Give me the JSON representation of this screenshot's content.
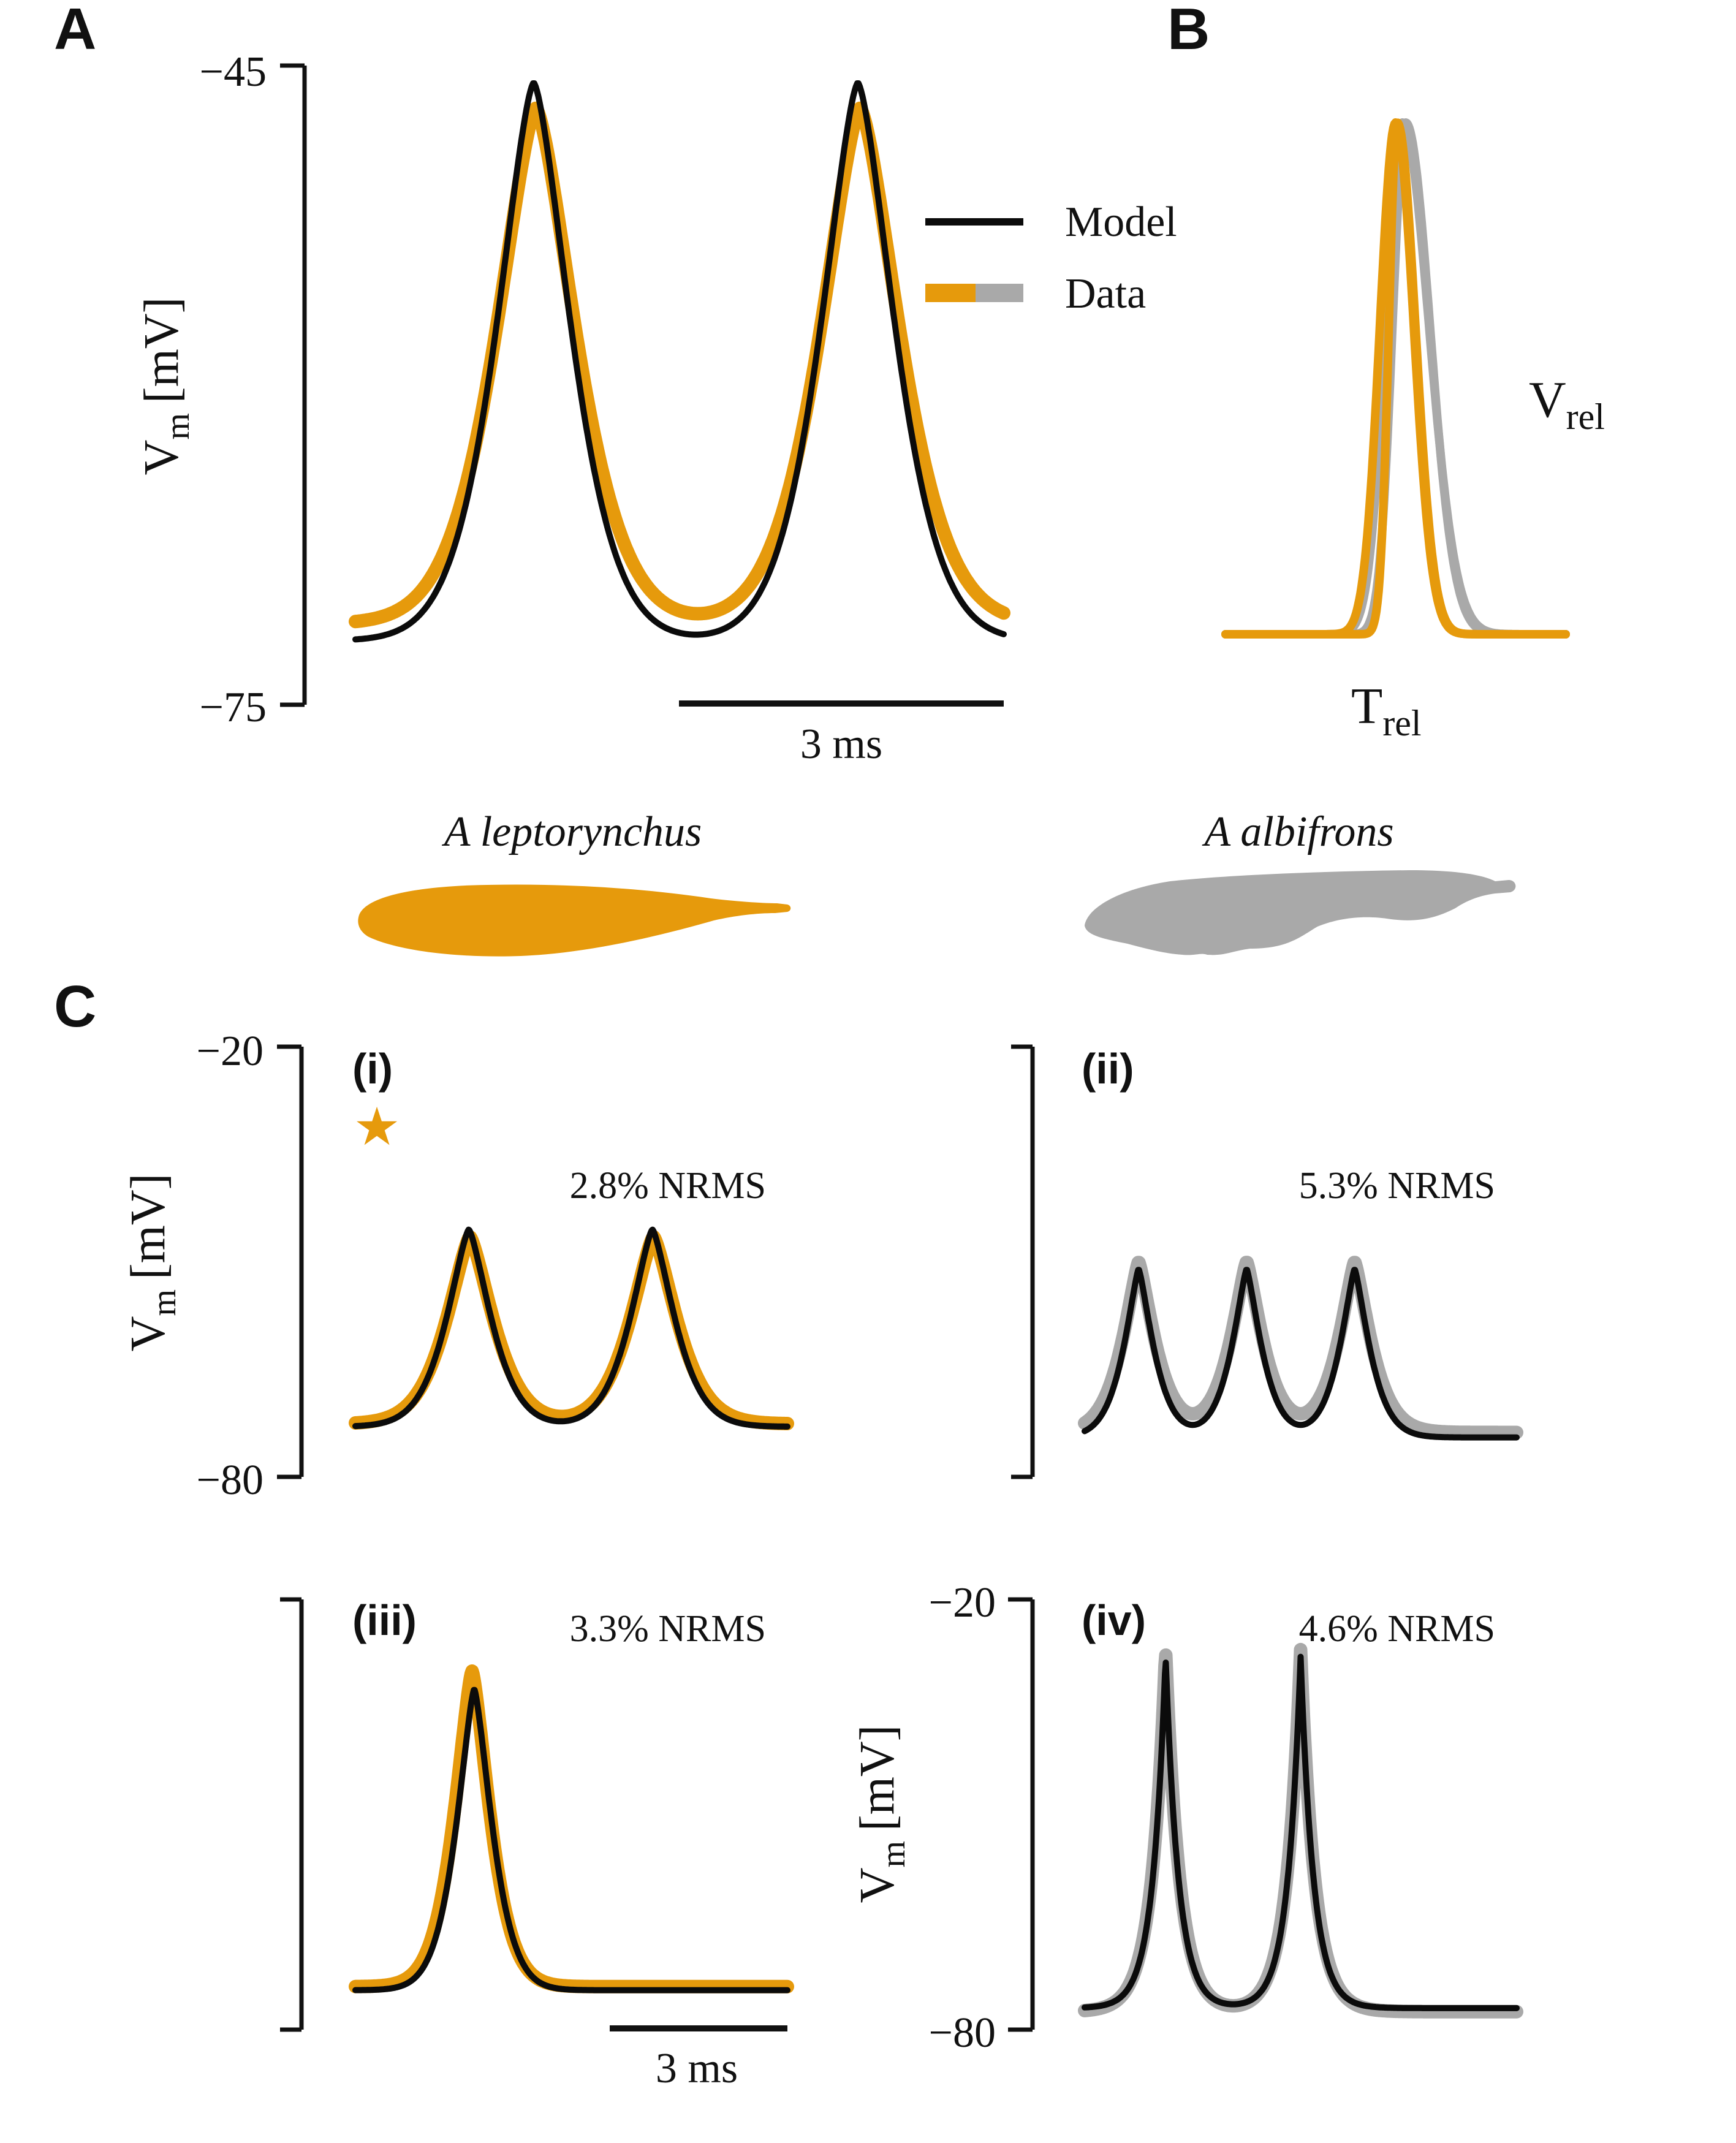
{
  "colors": {
    "model": "#0b0b0b",
    "data_leptorynchus": "#e69a0c",
    "data_albifrons": "#a9a9a9"
  },
  "panels": {
    "A": {
      "letter": "A"
    },
    "B": {
      "letter": "B"
    },
    "C": {
      "letter": "C"
    }
  },
  "legend": {
    "model": "Model",
    "data": "Data"
  },
  "species": {
    "left": "A leptorynchus",
    "right": "A albifrons"
  },
  "axis_label": {
    "base": "V",
    "sub": "m",
    "unit": "[mV]"
  },
  "scalebar": {
    "A": "3 ms",
    "C": "3 ms"
  },
  "panelB_labels": {
    "v_base": "V",
    "v_sub": "rel",
    "t_base": "T",
    "t_sub": "rel"
  },
  "subpanels": [
    {
      "tag": "(i)",
      "nrms": "2.8% NRMS",
      "star": true,
      "star_glyph": "★"
    },
    {
      "tag": "(ii)",
      "nrms": "5.3% NRMS"
    },
    {
      "tag": "(iii)",
      "nrms": "3.3% NRMS"
    },
    {
      "tag": "(iv)",
      "nrms": "4.6% NRMS"
    }
  ],
  "chart_data": [
    {
      "id": "A",
      "type": "line",
      "ylabel": "Vm [mV]",
      "yticks": [
        "−45",
        "−75"
      ],
      "ylim": [
        -75,
        -45
      ],
      "xlim": [
        0,
        6
      ],
      "x_units": "ms",
      "scalebar_ms": 3,
      "legend": "top-right",
      "series": [
        {
          "name": "Model",
          "color": "#0b0b0b",
          "trough": -72.0,
          "peak": -45.8,
          "peaks_ms": [
            1.65,
            4.65
          ],
          "width_ms": 0.5,
          "sharp": 1.5
        },
        {
          "name": "Data",
          "color": "#e69a0c",
          "trough": -71.2,
          "peak": -47.0,
          "peaks_ms": [
            1.67,
            4.67
          ],
          "width_ms": 0.54,
          "sharp": 1.5
        }
      ]
    },
    {
      "id": "B",
      "type": "line",
      "xlabel": "Trel",
      "ylabel": "Vrel",
      "xlim": [
        0,
        1
      ],
      "ylim": [
        0,
        1
      ],
      "series": [
        {
          "color": "#a9a9a9",
          "center": 0.52,
          "rise": 0.07,
          "fall": 0.11
        },
        {
          "color": "#a9a9a9",
          "center": 0.53,
          "rise": 0.055,
          "fall": 0.1
        },
        {
          "color": "#e69a0c",
          "center": 0.5,
          "rise": 0.065,
          "fall": 0.075
        },
        {
          "color": "#e69a0c",
          "center": 0.505,
          "rise": 0.035,
          "fall": 0.075
        }
      ]
    },
    {
      "id": "C(i)",
      "type": "line",
      "yticks": [
        "−20",
        "−80"
      ],
      "ylim": [
        -80,
        -20
      ],
      "xlim": [
        0,
        4
      ],
      "series": [
        {
          "name": "Model",
          "color": "#0b0b0b",
          "trough": -73.0,
          "peak": -45.5,
          "peaks_ms": [
            1.05,
            2.75
          ],
          "width_ms": 0.3,
          "sharp": 1.4
        },
        {
          "name": "Data",
          "color": "#e69a0c",
          "trough": -72.6,
          "peak": -46.5,
          "peaks_ms": [
            1.06,
            2.76
          ],
          "width_ms": 0.32,
          "sharp": 1.4
        }
      ]
    },
    {
      "id": "C(ii)",
      "type": "line",
      "ylim": [
        -80,
        -20
      ],
      "xlim": [
        0,
        4
      ],
      "series": [
        {
          "name": "Model",
          "color": "#0b0b0b",
          "trough": -74.5,
          "peak": -51.0,
          "peaks_ms": [
            0.5,
            1.5,
            2.5
          ],
          "width_ms": 0.2,
          "sharp": 1.3
        },
        {
          "name": "Data",
          "color": "#a9a9a9",
          "trough": -73.8,
          "peak": -50.0,
          "peaks_ms": [
            0.5,
            1.5,
            2.5
          ],
          "width_ms": 0.22,
          "sharp": 1.3
        }
      ]
    },
    {
      "id": "C(iii)",
      "type": "line",
      "ylim": [
        -80,
        -20
      ],
      "xlim": [
        0,
        4
      ],
      "series": [
        {
          "name": "Model",
          "color": "#0b0b0b",
          "trough": -74.5,
          "peak": -32.5,
          "peaks_ms": [
            1.1
          ],
          "width_ms": 0.24,
          "sharp": 1.4
        },
        {
          "name": "Data",
          "color": "#e69a0c",
          "trough": -74.0,
          "peak": -30.0,
          "peaks_ms": [
            1.08
          ],
          "width_ms": 0.24,
          "sharp": 1.4
        }
      ]
    },
    {
      "id": "C(iv)",
      "type": "line",
      "yticks": [
        "−20",
        "−80"
      ],
      "ylim": [
        -80,
        -20
      ],
      "xlim": [
        0,
        4
      ],
      "series": [
        {
          "name": "Model",
          "color": "#0b0b0b",
          "trough": -77.0,
          "peak": -28.0,
          "peaks_ms": [
            0.75,
            2.0
          ],
          "width_ms": 0.12,
          "sharp": 1.0
        },
        {
          "name": "Data",
          "color": "#a9a9a9",
          "trough": -77.5,
          "peak": -27.0,
          "peaks_ms": [
            0.75,
            2.0
          ],
          "width_ms": 0.13,
          "sharp": 1.0
        }
      ]
    }
  ]
}
